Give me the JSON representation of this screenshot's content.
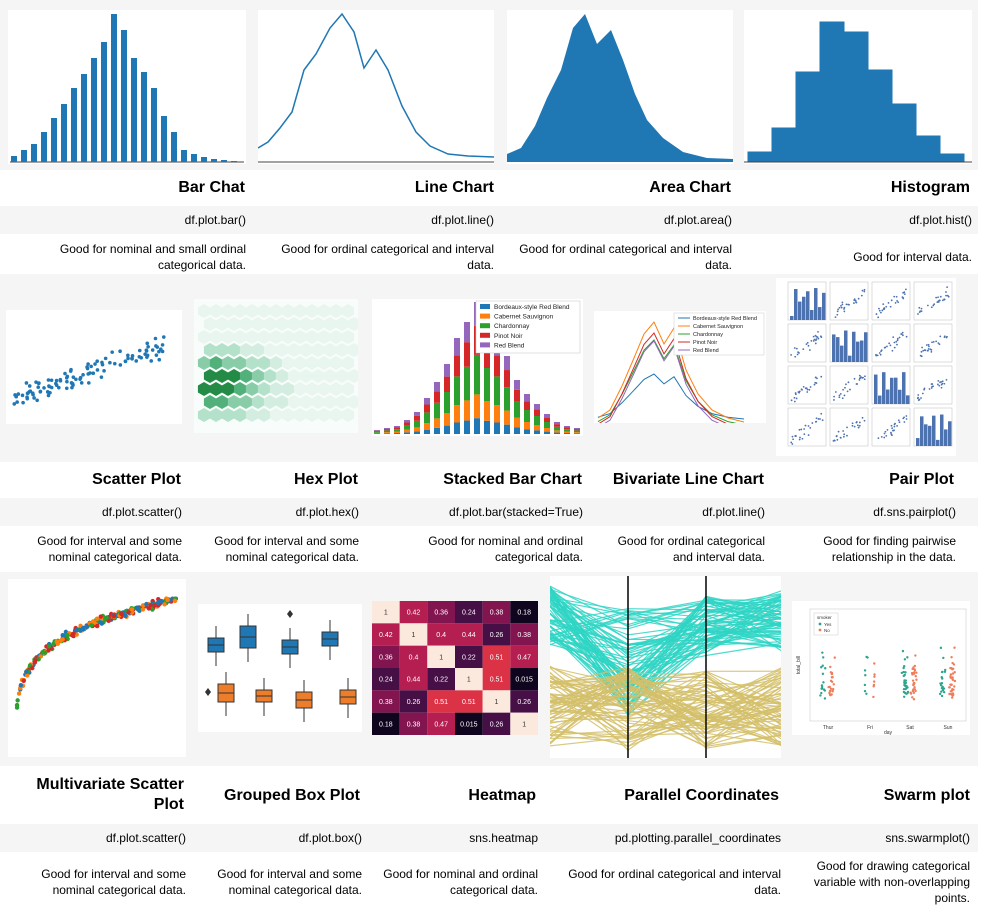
{
  "row1": [
    {
      "title": "Bar Chat",
      "code": "df.plot.bar()",
      "desc": "Good for nominal and small ordinal categorical data."
    },
    {
      "title": "Line Chart",
      "code": "df.plot.line()",
      "desc": "Good for ordinal categorical and interval data."
    },
    {
      "title": "Area Chart",
      "code": "df.plot.area()",
      "desc": "Good for ordinal categorical and interval data."
    },
    {
      "title": "Histogram",
      "code": "df.plot.hist()",
      "desc": "Good for interval data."
    }
  ],
  "row2": [
    {
      "title": "Scatter Plot",
      "code": "df.plot.scatter()",
      "desc": "Good for interval and some nominal categorical data."
    },
    {
      "title": "Hex Plot",
      "code": "df.plot.hex()",
      "desc": "Good for interval and some nominal categorical data."
    },
    {
      "title": "Stacked Bar Chart",
      "code": "df.plot.bar(stacked=True)",
      "desc": "Good for nominal and ordinal categorical data."
    },
    {
      "title": "Bivariate Line Chart",
      "code": "df.plot.line()",
      "desc": "Good for ordinal categorical and interval data."
    },
    {
      "title": "Pair Plot",
      "code": "df.sns.pairplot()",
      "desc": "Good for finding pairwise relationship in the data."
    }
  ],
  "row3": [
    {
      "title": "Multivariate Scatter Plot",
      "code": "df.plot.scatter()",
      "desc": "Good for interval and some nominal categorical data."
    },
    {
      "title": "Grouped Box Plot",
      "code": "df.plot.box()",
      "desc": "Good for interval and some nominal categorical data."
    },
    {
      "title": "Heatmap",
      "code": "sns.heatmap",
      "desc": "Good for nominal and ordinal categorical data."
    },
    {
      "title": "Parallel Coordinates",
      "code": "pd.plotting.parallel_coordinates",
      "desc": "Good for ordinal categorical and interval data."
    },
    {
      "title": "Swarm plot",
      "code": "sns.swarmplot()",
      "desc": "Good for drawing categorical variable with non-overlapping points."
    }
  ],
  "legend_wine": [
    "Bordeaux-style Red Blend",
    "Cabernet Sauvignon",
    "Chardonnay",
    "Pinot Noir",
    "Red Blend"
  ],
  "swarm_legend": {
    "title": "smoker",
    "items": [
      "Yes",
      "No"
    ],
    "xlabel": "day",
    "ylabel": "total_bill",
    "days": [
      "Thur",
      "Fri",
      "Sat",
      "Sun"
    ]
  },
  "heatmap": {
    "values": [
      [
        "1",
        "0.42",
        "0.36",
        "0.24",
        "0.38",
        "0.18"
      ],
      [
        "0.42",
        "1",
        "0.4",
        "0.44",
        "0.26",
        "0.38"
      ],
      [
        "0.36",
        "0.4",
        "1",
        "0.22",
        "0.51",
        "0.47"
      ],
      [
        "0.24",
        "0.44",
        "0.22",
        "1",
        "0.51",
        "0.015"
      ],
      [
        "0.38",
        "0.26",
        "0.51",
        "0.51",
        "1",
        "0.26"
      ],
      [
        "0.18",
        "0.38",
        "0.47",
        "0.015",
        "0.26",
        "1"
      ]
    ]
  },
  "colors": {
    "blue": "#1f77b4",
    "orange": "#ff7f0e",
    "green": "#2ca02c",
    "red": "#d62728",
    "purple": "#9467bd",
    "teal": "#2ed5c4",
    "tan": "#d4bf6a"
  }
}
